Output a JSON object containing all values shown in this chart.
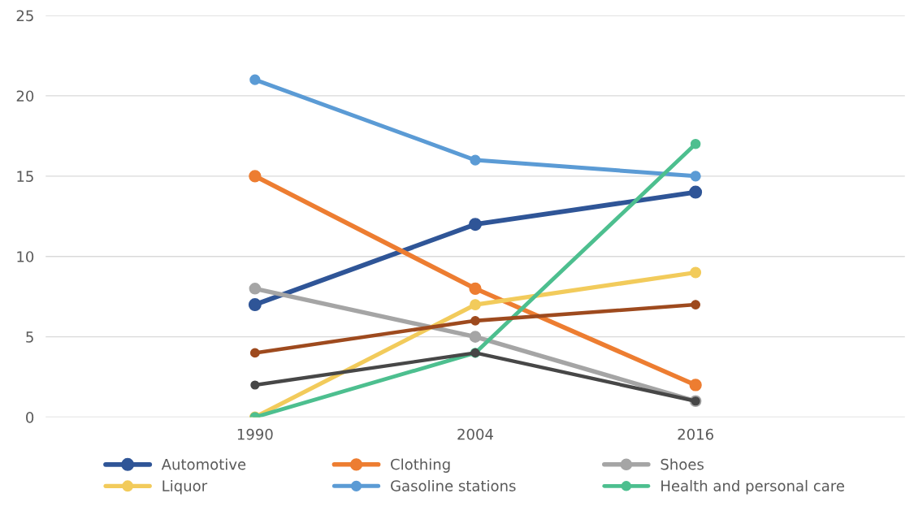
{
  "chart_data": {
    "type": "line",
    "categories": [
      "1990",
      "2004",
      "2016"
    ],
    "ylim": [
      0,
      25
    ],
    "yticks": [
      0,
      5,
      10,
      15,
      20,
      25
    ],
    "grid": "y",
    "legend": "bottom",
    "marker": "circle",
    "line_style": "solid",
    "series": [
      {
        "name": "Automotive",
        "color": "#2f5597",
        "values": [
          7,
          12,
          14
        ]
      },
      {
        "name": "Clothing",
        "color": "#ed7d31",
        "values": [
          15,
          8,
          2
        ]
      },
      {
        "name": "Shoes",
        "color": "#a5a5a5",
        "values": [
          8,
          5,
          1
        ]
      },
      {
        "name": "Liquor",
        "color": "#f2cb5b",
        "values": [
          0,
          7,
          9
        ]
      },
      {
        "name": "Gasoline stations",
        "color": "#5b9bd5",
        "values": [
          21,
          16,
          15
        ]
      },
      {
        "name": "Health and personal care",
        "color": "#4dbf8f",
        "values": [
          0,
          4,
          17
        ]
      },
      {
        "color": "#9e4a1e",
        "values": [
          4,
          6,
          7
        ]
      },
      {
        "color": "#474747",
        "values": [
          2,
          4,
          1
        ]
      }
    ]
  }
}
